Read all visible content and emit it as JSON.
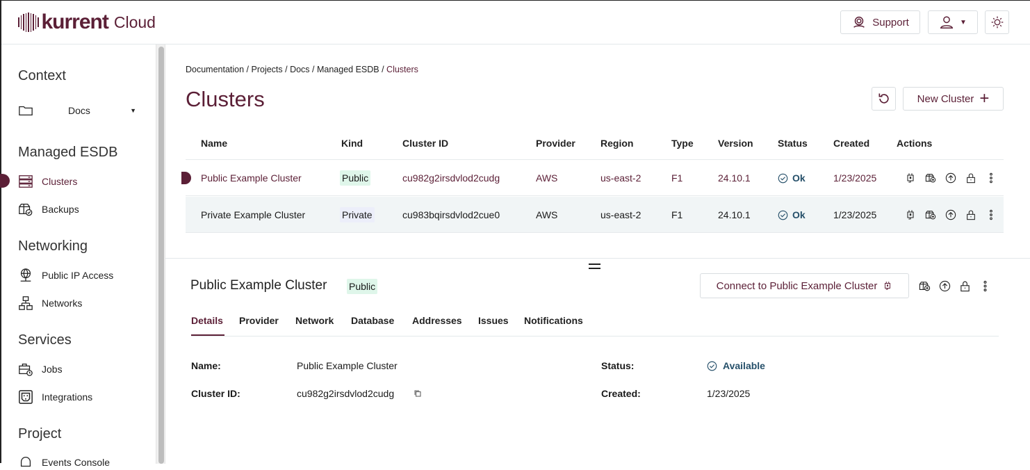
{
  "brand": {
    "name": "kurrent",
    "suffix": "Cloud",
    "color": "#5b1f36"
  },
  "header": {
    "support_label": "Support"
  },
  "sidebar": {
    "context_heading": "Context",
    "context_value": "Docs",
    "sections": [
      {
        "heading": "Managed ESDB",
        "items": [
          {
            "label": "Clusters",
            "icon": "server-icon",
            "active": true
          },
          {
            "label": "Backups",
            "icon": "backup-icon"
          }
        ]
      },
      {
        "heading": "Networking",
        "items": [
          {
            "label": "Public IP Access",
            "icon": "globe-icon"
          },
          {
            "label": "Networks",
            "icon": "network-icon"
          }
        ]
      },
      {
        "heading": "Services",
        "items": [
          {
            "label": "Jobs",
            "icon": "jobs-icon"
          },
          {
            "label": "Integrations",
            "icon": "outlet-icon"
          }
        ]
      },
      {
        "heading": "Project",
        "items": [
          {
            "label": "Events Console",
            "icon": "bell-icon"
          }
        ]
      }
    ]
  },
  "breadcrumb": {
    "items": [
      "Documentation",
      "Projects",
      "Docs",
      "Managed ESDB"
    ],
    "current": "Clusters",
    "separator": " / "
  },
  "page": {
    "title": "Clusters",
    "new_cluster_label": "New Cluster"
  },
  "table": {
    "columns": [
      "Name",
      "Kind",
      "Cluster ID",
      "Provider",
      "Region",
      "Type",
      "Version",
      "Status",
      "Created",
      "Actions"
    ],
    "rows": [
      {
        "name": "Public Example Cluster",
        "kind": "Public",
        "id": "cu982g2irsdvlod2cudg",
        "provider": "AWS",
        "region": "us-east-2",
        "type": "F1",
        "version": "24.10.1",
        "status": "Ok",
        "created": "1/23/2025",
        "selected": true
      },
      {
        "name": "Private Example Cluster",
        "kind": "Private",
        "id": "cu983bqirsdvlod2cue0",
        "provider": "AWS",
        "region": "us-east-2",
        "type": "F1",
        "version": "24.10.1",
        "status": "Ok",
        "created": "1/23/2025",
        "selected": false
      }
    ]
  },
  "detail": {
    "title": "Public Example Cluster",
    "kind": "Public",
    "connect_label": "Connect to Public Example Cluster",
    "tabs": [
      "Details",
      "Provider",
      "Network",
      "Database",
      "Addresses",
      "Issues",
      "Notifications"
    ],
    "active_tab": "Details",
    "fields": {
      "name_label": "Name:",
      "name": "Public Example Cluster",
      "id_label": "Cluster ID:",
      "id": "cu982g2irsdvlod2cudg",
      "status_label": "Status:",
      "status": "Available",
      "created_label": "Created:",
      "created": "1/23/2025"
    }
  }
}
